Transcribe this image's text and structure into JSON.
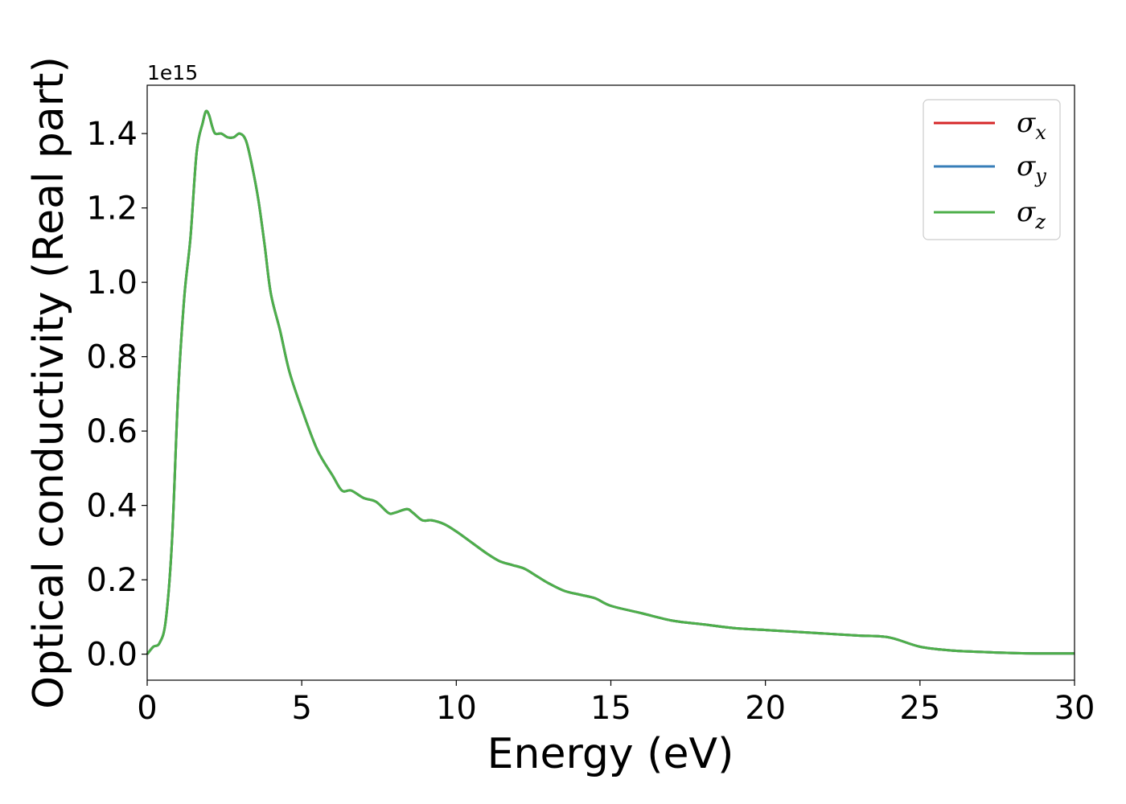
{
  "chart_data": {
    "type": "line",
    "title": "",
    "xlabel": "Energy (eV)",
    "ylabel": "Optical conductivity (Real part)",
    "y_offset_label": "1e15",
    "xlim": [
      0,
      30
    ],
    "ylim": [
      -0.07,
      1.53
    ],
    "x_ticks": [
      0,
      5,
      10,
      15,
      20,
      25,
      30
    ],
    "y_ticks": [
      0.0,
      0.2,
      0.4,
      0.6,
      0.8,
      1.0,
      1.2,
      1.4
    ],
    "grid": false,
    "legend_position": "top-right",
    "x": [
      0,
      0.2,
      0.4,
      0.6,
      0.8,
      1.0,
      1.2,
      1.4,
      1.6,
      1.8,
      1.9,
      2.0,
      2.1,
      2.2,
      2.4,
      2.6,
      2.8,
      3.0,
      3.2,
      3.4,
      3.6,
      3.8,
      4.0,
      4.3,
      4.6,
      5.0,
      5.5,
      6.0,
      6.3,
      6.6,
      7.0,
      7.4,
      7.8,
      8.0,
      8.4,
      8.6,
      8.9,
      9.2,
      9.6,
      10.0,
      10.5,
      11.0,
      11.4,
      11.8,
      12.2,
      12.6,
      13.0,
      13.5,
      14.0,
      14.5,
      15.0,
      16.0,
      17.0,
      18.0,
      19.0,
      20.0,
      21.0,
      22.0,
      23.0,
      24.0,
      25.0,
      26.0,
      27.0,
      28.0,
      29.0,
      30.0
    ],
    "series": [
      {
        "name": "σx",
        "color": "#d62728",
        "values": [
          0.0,
          0.02,
          0.03,
          0.09,
          0.3,
          0.7,
          0.96,
          1.12,
          1.35,
          1.43,
          1.46,
          1.45,
          1.42,
          1.4,
          1.4,
          1.39,
          1.39,
          1.4,
          1.38,
          1.31,
          1.22,
          1.1,
          0.97,
          0.87,
          0.76,
          0.66,
          0.55,
          0.48,
          0.44,
          0.44,
          0.42,
          0.41,
          0.38,
          0.38,
          0.39,
          0.38,
          0.36,
          0.36,
          0.35,
          0.33,
          0.3,
          0.27,
          0.25,
          0.24,
          0.23,
          0.21,
          0.19,
          0.17,
          0.16,
          0.15,
          0.13,
          0.11,
          0.09,
          0.08,
          0.07,
          0.065,
          0.06,
          0.055,
          0.05,
          0.045,
          0.02,
          0.01,
          0.006,
          0.003,
          0.002,
          0.002
        ]
      },
      {
        "name": "σy",
        "color": "#377eb8",
        "values": [
          0.0,
          0.02,
          0.03,
          0.09,
          0.3,
          0.7,
          0.96,
          1.12,
          1.35,
          1.43,
          1.46,
          1.45,
          1.42,
          1.4,
          1.4,
          1.39,
          1.39,
          1.4,
          1.38,
          1.31,
          1.22,
          1.1,
          0.97,
          0.87,
          0.76,
          0.66,
          0.55,
          0.48,
          0.44,
          0.44,
          0.42,
          0.41,
          0.38,
          0.38,
          0.39,
          0.38,
          0.36,
          0.36,
          0.35,
          0.33,
          0.3,
          0.27,
          0.25,
          0.24,
          0.23,
          0.21,
          0.19,
          0.17,
          0.16,
          0.15,
          0.13,
          0.11,
          0.09,
          0.08,
          0.07,
          0.065,
          0.06,
          0.055,
          0.05,
          0.045,
          0.02,
          0.01,
          0.006,
          0.003,
          0.002,
          0.002
        ]
      },
      {
        "name": "σz",
        "color": "#4daf4a",
        "values": [
          0.0,
          0.02,
          0.03,
          0.09,
          0.3,
          0.7,
          0.96,
          1.12,
          1.35,
          1.43,
          1.46,
          1.45,
          1.42,
          1.4,
          1.4,
          1.39,
          1.39,
          1.4,
          1.38,
          1.31,
          1.22,
          1.1,
          0.97,
          0.87,
          0.76,
          0.66,
          0.55,
          0.48,
          0.44,
          0.44,
          0.42,
          0.41,
          0.38,
          0.38,
          0.39,
          0.38,
          0.36,
          0.36,
          0.35,
          0.33,
          0.3,
          0.27,
          0.25,
          0.24,
          0.23,
          0.21,
          0.19,
          0.17,
          0.16,
          0.15,
          0.13,
          0.11,
          0.09,
          0.08,
          0.07,
          0.065,
          0.06,
          0.055,
          0.05,
          0.045,
          0.02,
          0.01,
          0.006,
          0.003,
          0.002,
          0.002
        ]
      }
    ],
    "legend": [
      {
        "symbol": "σ",
        "subscript": "x"
      },
      {
        "symbol": "σ",
        "subscript": "y"
      },
      {
        "symbol": "σ",
        "subscript": "z"
      }
    ]
  }
}
